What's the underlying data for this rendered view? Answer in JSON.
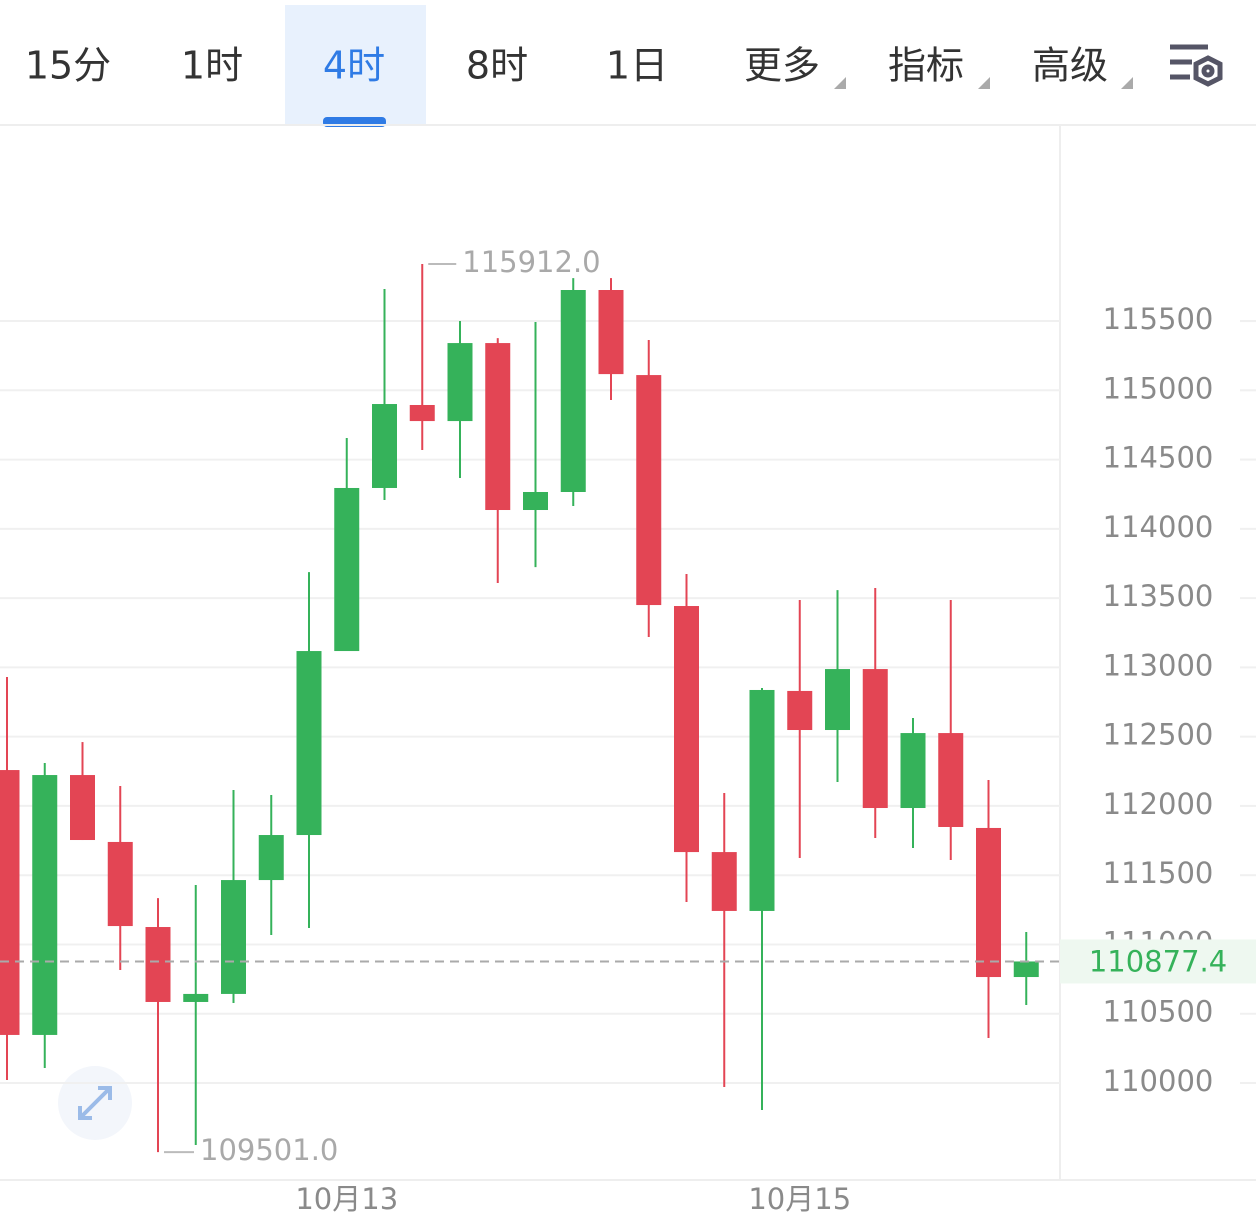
{
  "tabs": [
    "15分",
    "1时",
    "4时",
    "8时",
    "1日",
    "更多",
    "指标",
    "高级"
  ],
  "chart_data": {
    "type": "candlestick",
    "categories": [
      null,
      null,
      null,
      null,
      null,
      null,
      null,
      null,
      null,
      "10月13",
      null,
      null,
      null,
      null,
      null,
      null,
      null,
      null,
      null,
      null,
      null,
      "10月15",
      null,
      null,
      null,
      null,
      null,
      null
    ],
    "open": [
      112259,
      110347,
      112223,
      111740,
      111126,
      110585,
      110643,
      111465,
      111790,
      113118,
      114295,
      114894,
      114778,
      115341,
      114136,
      114266,
      115724,
      115110,
      113443,
      111667,
      111242,
      112830,
      112548,
      112988,
      111985,
      112526,
      111841,
      110765
    ],
    "high": [
      112931,
      112310,
      112461,
      112144,
      111335,
      111429,
      112115,
      112079,
      113688,
      114656,
      115731,
      115912,
      115500,
      115377,
      115493,
      115810,
      115810,
      115363,
      113674,
      112093,
      112851,
      113486,
      113558,
      113573,
      112635,
      113486,
      112187,
      111090
    ],
    "low": [
      110022,
      110108,
      111754,
      110816,
      109501,
      109553,
      110578,
      111068,
      111119,
      113118,
      114208,
      114569,
      114367,
      113609,
      113724,
      114165,
      114930,
      113219,
      111307,
      109971,
      109805,
      111624,
      112173,
      111769,
      111696,
      111610,
      110325,
      110563
    ],
    "close": [
      110347,
      112223,
      111754,
      111133,
      110585,
      110643,
      111465,
      111790,
      113118,
      114295,
      114901,
      114778,
      115341,
      114136,
      114266,
      115724,
      115117,
      113450,
      111667,
      111242,
      112837,
      112548,
      112988,
      111985,
      112526,
      111848,
      110765,
      110877.4
    ],
    "up_color": "#35b25a",
    "down_color": "#e34554",
    "high_label": "115912.0",
    "low_label": "109501.0",
    "ylim": [
      109300,
      116915
    ],
    "yticks": [
      110000,
      110500,
      111000,
      111500,
      112000,
      112500,
      113000,
      113500,
      114000,
      114500,
      115000,
      115500
    ],
    "grid": true
  }
}
